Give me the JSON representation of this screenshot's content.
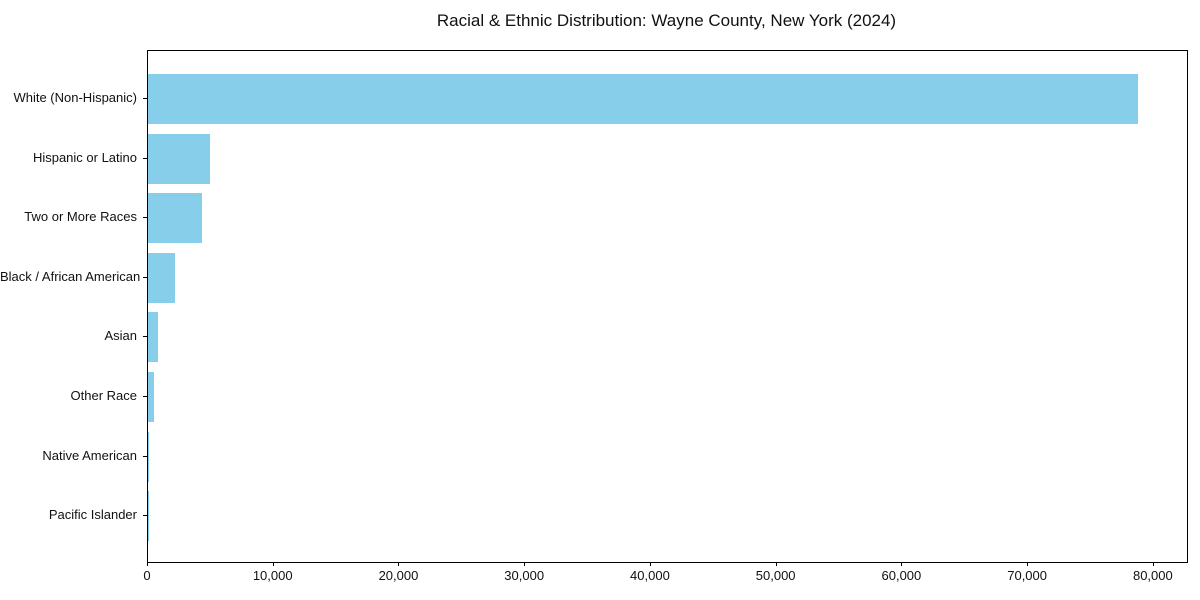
{
  "chart_data": {
    "type": "bar",
    "orientation": "horizontal",
    "title": "Racial & Ethnic Distribution: Wayne County, New York (2024)",
    "categories": [
      "White (Non-Hispanic)",
      "Hispanic or Latino",
      "Two or More Races",
      "Black / African American",
      "Asian",
      "Other Race",
      "Native American",
      "Pacific Islander"
    ],
    "values": [
      78700,
      4900,
      4300,
      2150,
      800,
      500,
      100,
      30
    ],
    "bar_color": "#87CEEB",
    "xlabel": "",
    "ylabel": "",
    "xlim": [
      0,
      82635
    ],
    "x_ticks": [
      0,
      10000,
      20000,
      30000,
      40000,
      50000,
      60000,
      70000,
      80000
    ],
    "x_tick_labels": [
      "0",
      "10,000",
      "20,000",
      "30,000",
      "40,000",
      "50,000",
      "60,000",
      "70,000",
      "80,000"
    ],
    "grid": false,
    "legend": "none",
    "frame_color": "#000000",
    "background_color": "#ffffff",
    "largest_bar_on_top": true
  }
}
